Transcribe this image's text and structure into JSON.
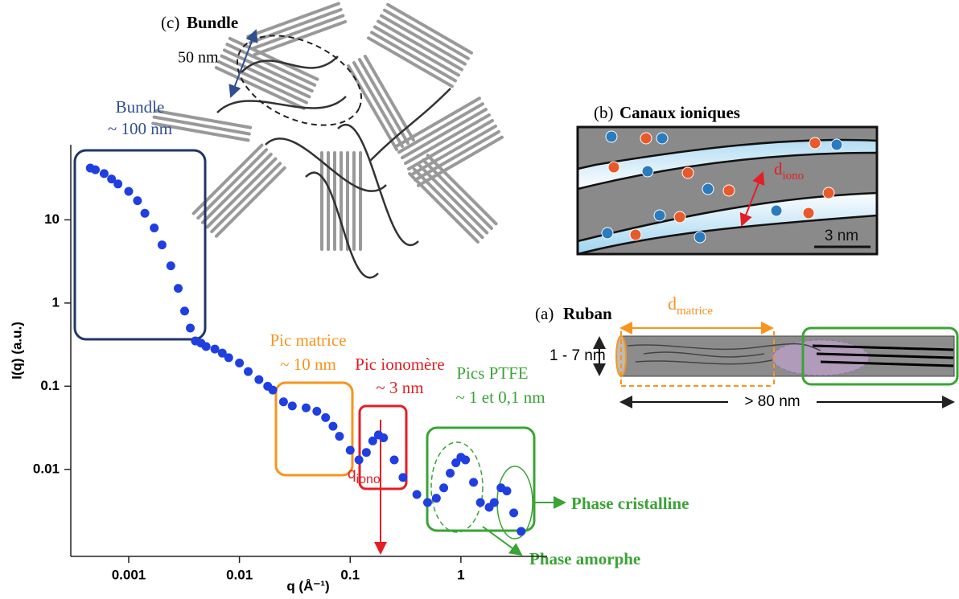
{
  "chart_data": {
    "type": "scatter",
    "x_label": "q (Å⁻¹)",
    "y_label": "I(q) (a.u.)",
    "x_log": true,
    "y_log": true,
    "color": "#1f3fe0",
    "xlim": [
      0.0003,
      6
    ],
    "ylim": [
      0.0009,
      80
    ],
    "xticks": [
      0.001,
      0.01,
      0.1,
      1
    ],
    "yticks": [
      0.01,
      0.1,
      1,
      10
    ],
    "x": [
      0.00045,
      0.0005,
      0.0006,
      0.0007,
      0.0008,
      0.001,
      0.0012,
      0.0014,
      0.0017,
      0.002,
      0.0024,
      0.0028,
      0.0032,
      0.0036,
      0.004,
      0.0045,
      0.005,
      0.006,
      0.007,
      0.008,
      0.01,
      0.012,
      0.015,
      0.018,
      0.02,
      0.025,
      0.03,
      0.04,
      0.05,
      0.06,
      0.07,
      0.08,
      0.1,
      0.12,
      0.14,
      0.16,
      0.18,
      0.2,
      0.25,
      0.3,
      0.4,
      0.5,
      0.6,
      0.7,
      0.8,
      0.9,
      1.0,
      1.1,
      1.3,
      1.5,
      1.8,
      2.0,
      2.3,
      2.6,
      3.0,
      3.5
    ],
    "values": [
      42,
      40,
      36,
      31,
      27,
      22,
      17,
      12,
      8,
      5,
      2.8,
      1.5,
      0.8,
      0.5,
      0.35,
      0.33,
      0.3,
      0.28,
      0.25,
      0.22,
      0.19,
      0.15,
      0.12,
      0.1,
      0.09,
      0.065,
      0.058,
      0.055,
      0.05,
      0.042,
      0.033,
      0.025,
      0.017,
      0.013,
      0.016,
      0.022,
      0.026,
      0.024,
      0.013,
      0.008,
      0.005,
      0.004,
      0.0045,
      0.006,
      0.009,
      0.012,
      0.014,
      0.013,
      0.007,
      0.004,
      0.0035,
      0.004,
      0.006,
      0.0055,
      0.003,
      0.0018
    ]
  },
  "annotations": {
    "bundle": [
      "Bundle",
      "~ 100 nm"
    ],
    "matrice": [
      "Pic matrice",
      "~ 10 nm"
    ],
    "ionomere": [
      "Pic ionomère",
      "~ 3 nm"
    ],
    "ptfe": [
      "Pics PTFE",
      "~ 1 et 0,1 nm"
    ],
    "q_iono": [
      "q",
      "iono"
    ],
    "cristalline": "Phase cristalline",
    "amorphe": "Phase amorphe"
  },
  "panels": {
    "c": {
      "label": "(c)",
      "title": "Bundle",
      "scale": "50 nm"
    },
    "b": {
      "label": "(b)",
      "title": "Canaux ioniques",
      "d": [
        "d",
        "iono"
      ],
      "scale": "3 nm"
    },
    "a": {
      "label": "(a)",
      "title": "Ruban",
      "d": [
        "d",
        "matrice"
      ],
      "width": "1 - 7 nm",
      "length": "> 80 nm"
    }
  }
}
